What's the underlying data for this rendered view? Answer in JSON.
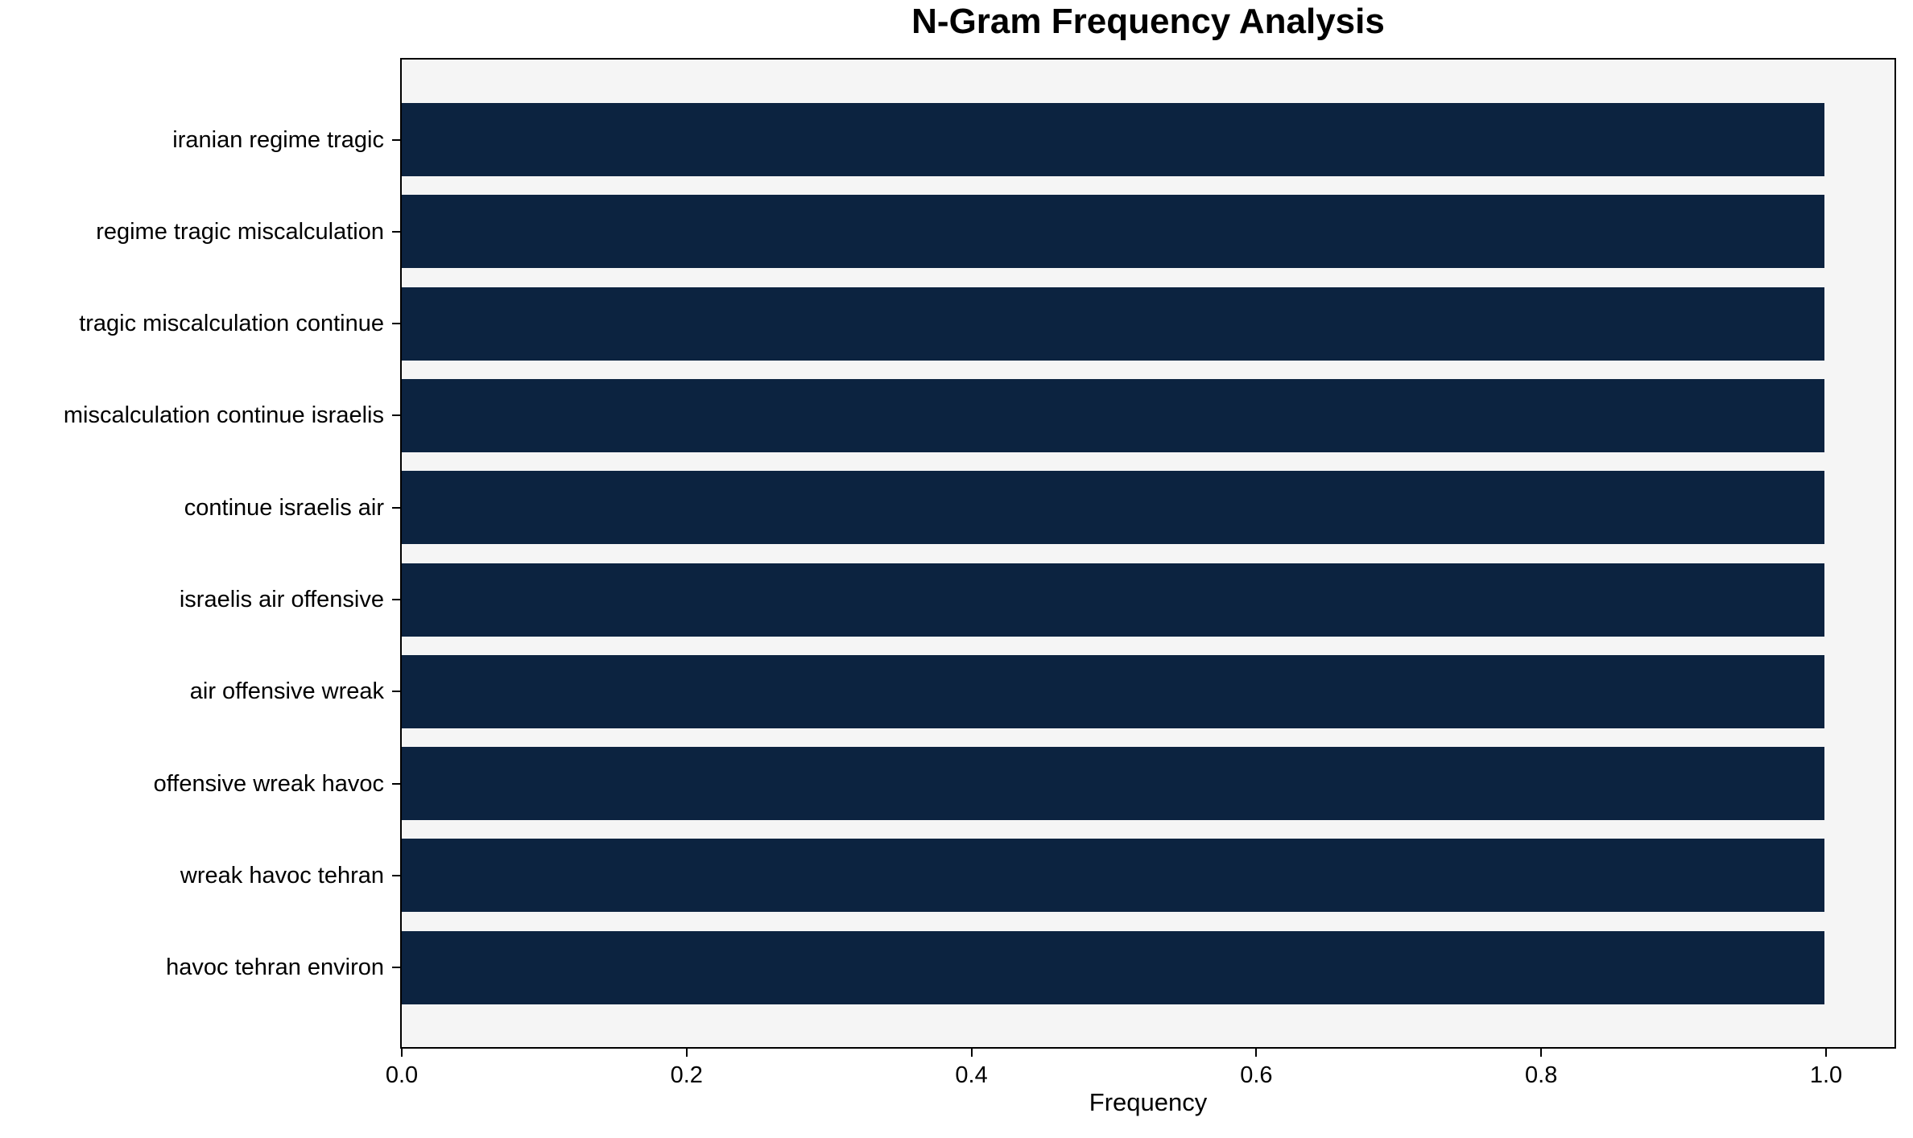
{
  "chart_data": {
    "type": "bar",
    "orientation": "horizontal",
    "title": "N-Gram Frequency Analysis",
    "xlabel": "Frequency",
    "ylabel": "",
    "categories": [
      "iranian regime tragic",
      "regime tragic miscalculation",
      "tragic miscalculation continue",
      "miscalculation continue israelis",
      "continue israelis air",
      "israelis air offensive",
      "air offensive wreak",
      "offensive wreak havoc",
      "wreak havoc tehran",
      "havoc tehran environ"
    ],
    "values": [
      1.0,
      1.0,
      1.0,
      1.0,
      1.0,
      1.0,
      1.0,
      1.0,
      1.0,
      1.0
    ],
    "xticks": [
      0.0,
      0.2,
      0.4,
      0.6,
      0.8,
      1.0
    ],
    "xtick_labels": [
      "0.0",
      "0.2",
      "0.4",
      "0.6",
      "0.8",
      "1.0"
    ],
    "xlim": [
      0,
      1.05
    ],
    "grid": false,
    "legend": null,
    "bar_color": "#0c2340",
    "plot_bg_color": "#f5f5f5",
    "axis_color": "#000000"
  }
}
